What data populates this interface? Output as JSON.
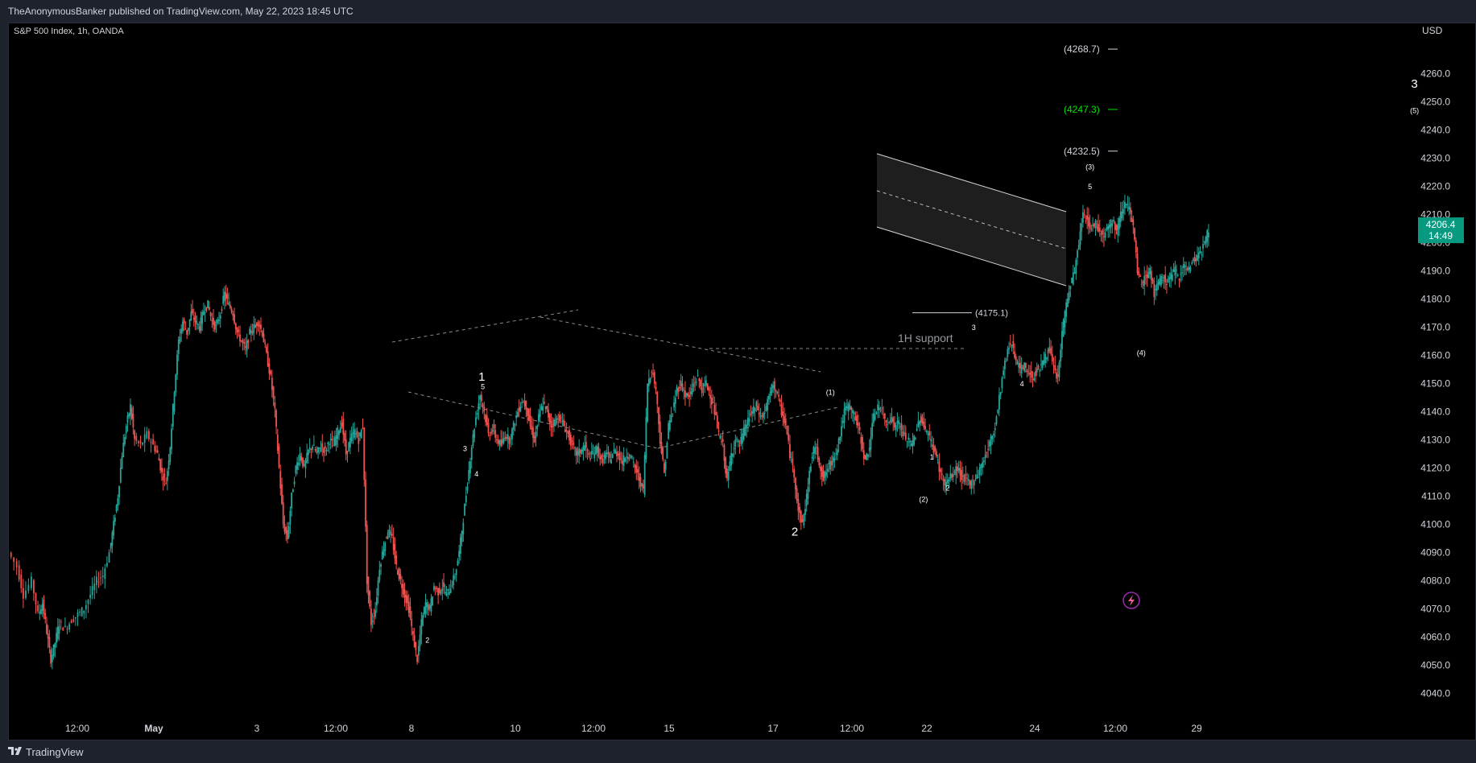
{
  "header": {
    "text": "TheAnonymousBanker published on TradingView.com, May 22, 2023 18:45 UTC"
  },
  "footer": {
    "brand": "TradingView"
  },
  "colors": {
    "up": "#26a69a",
    "down": "#ef5350",
    "background": "#000000",
    "frame": "#1e222d",
    "text": "#d1d4dc",
    "accent_green": "#00e600",
    "price_label_bg": "#089981"
  },
  "chart_data": {
    "type": "candlestick",
    "symbol_label": "S&P 500 Index, 1h, OANDA",
    "currency": "USD",
    "ylim": [
      4035,
      4275
    ],
    "y_ticks": [
      4040.0,
      4050.0,
      4060.0,
      4070.0,
      4080.0,
      4090.0,
      4100.0,
      4110.0,
      4120.0,
      4130.0,
      4140.0,
      4150.0,
      4160.0,
      4170.0,
      4180.0,
      4190.0,
      4200.0,
      4210.0,
      4220.0,
      4230.0,
      4240.0,
      4250.0,
      4260.0
    ],
    "x_ticks": [
      "12:00",
      "May",
      "3",
      "12:00",
      "8",
      "10",
      "12:00",
      "15",
      "17",
      "12:00",
      "22",
      "24",
      "12:00",
      "29"
    ],
    "last_price": {
      "value": "4206.4",
      "countdown": "14:49"
    },
    "price_path": [
      [
        0,
        4090
      ],
      [
        8,
        4085
      ],
      [
        14,
        4075
      ],
      [
        22,
        4080
      ],
      [
        28,
        4068
      ],
      [
        32,
        4072
      ],
      [
        36,
        4062
      ],
      [
        40,
        4052
      ],
      [
        44,
        4058
      ],
      [
        48,
        4065
      ],
      [
        54,
        4063
      ],
      [
        60,
        4066
      ],
      [
        66,
        4068
      ],
      [
        72,
        4070
      ],
      [
        78,
        4075
      ],
      [
        84,
        4080
      ],
      [
        90,
        4082
      ],
      [
        96,
        4090
      ],
      [
        100,
        4100
      ],
      [
        104,
        4110
      ],
      [
        108,
        4125
      ],
      [
        112,
        4135
      ],
      [
        116,
        4142
      ],
      [
        120,
        4130
      ],
      [
        126,
        4128
      ],
      [
        132,
        4132
      ],
      [
        138,
        4128
      ],
      [
        142,
        4125
      ],
      [
        146,
        4118
      ],
      [
        150,
        4115
      ],
      [
        154,
        4128
      ],
      [
        158,
        4148
      ],
      [
        162,
        4165
      ],
      [
        166,
        4172
      ],
      [
        170,
        4168
      ],
      [
        174,
        4175
      ],
      [
        178,
        4172
      ],
      [
        182,
        4170
      ],
      [
        186,
        4176
      ],
      [
        190,
        4178
      ],
      [
        194,
        4172
      ],
      [
        198,
        4170
      ],
      [
        202,
        4175
      ],
      [
        206,
        4182
      ],
      [
        210,
        4178
      ],
      [
        214,
        4175
      ],
      [
        218,
        4168
      ],
      [
        222,
        4165
      ],
      [
        226,
        4162
      ],
      [
        230,
        4168
      ],
      [
        234,
        4170
      ],
      [
        238,
        4172
      ],
      [
        242,
        4168
      ],
      [
        246,
        4160
      ],
      [
        250,
        4152
      ],
      [
        254,
        4140
      ],
      [
        258,
        4120
      ],
      [
        262,
        4100
      ],
      [
        266,
        4095
      ],
      [
        270,
        4110
      ],
      [
        274,
        4120
      ],
      [
        278,
        4125
      ],
      [
        282,
        4120
      ],
      [
        286,
        4126
      ],
      [
        290,
        4128
      ],
      [
        294,
        4125
      ],
      [
        298,
        4128
      ],
      [
        302,
        4126
      ],
      [
        306,
        4130
      ],
      [
        310,
        4128
      ],
      [
        314,
        4133
      ],
      [
        318,
        4136
      ],
      [
        322,
        4125
      ],
      [
        326,
        4130
      ],
      [
        330,
        4133
      ],
      [
        334,
        4130
      ],
      [
        338,
        4135
      ],
      [
        342,
        4080
      ],
      [
        346,
        4065
      ],
      [
        350,
        4070
      ],
      [
        354,
        4085
      ],
      [
        358,
        4092
      ],
      [
        362,
        4098
      ],
      [
        366,
        4095
      ],
      [
        370,
        4085
      ],
      [
        374,
        4080
      ],
      [
        378,
        4075
      ],
      [
        382,
        4070
      ],
      [
        386,
        4060
      ],
      [
        390,
        4052
      ],
      [
        394,
        4065
      ],
      [
        398,
        4072
      ],
      [
        402,
        4070
      ],
      [
        406,
        4078
      ],
      [
        410,
        4076
      ],
      [
        414,
        4078
      ],
      [
        418,
        4075
      ],
      [
        422,
        4078
      ],
      [
        426,
        4082
      ],
      [
        430,
        4090
      ],
      [
        434,
        4102
      ],
      [
        438,
        4115
      ],
      [
        442,
        4128
      ],
      [
        446,
        4138
      ],
      [
        450,
        4146
      ],
      [
        454,
        4140
      ],
      [
        458,
        4132
      ],
      [
        462,
        4134
      ],
      [
        466,
        4130
      ],
      [
        470,
        4128
      ],
      [
        474,
        4132
      ],
      [
        478,
        4130
      ],
      [
        482,
        4135
      ],
      [
        486,
        4140
      ],
      [
        490,
        4144
      ],
      [
        494,
        4142
      ],
      [
        498,
        4135
      ],
      [
        502,
        4130
      ],
      [
        506,
        4138
      ],
      [
        510,
        4143
      ],
      [
        514,
        4140
      ],
      [
        518,
        4135
      ],
      [
        522,
        4137
      ],
      [
        526,
        4138
      ],
      [
        530,
        4135
      ],
      [
        534,
        4132
      ],
      [
        538,
        4128
      ],
      [
        542,
        4125
      ],
      [
        546,
        4126
      ],
      [
        550,
        4128
      ],
      [
        554,
        4124
      ],
      [
        558,
        4125
      ],
      [
        562,
        4127
      ],
      [
        566,
        4122
      ],
      [
        570,
        4125
      ],
      [
        574,
        4123
      ],
      [
        578,
        4126
      ],
      [
        582,
        4125
      ],
      [
        586,
        4122
      ],
      [
        590,
        4125
      ],
      [
        594,
        4124
      ],
      [
        598,
        4120
      ],
      [
        602,
        4116
      ],
      [
        606,
        4112
      ],
      [
        610,
        4150
      ],
      [
        614,
        4155
      ],
      [
        618,
        4148
      ],
      [
        622,
        4130
      ],
      [
        626,
        4118
      ],
      [
        630,
        4135
      ],
      [
        634,
        4140
      ],
      [
        638,
        4148
      ],
      [
        642,
        4150
      ],
      [
        646,
        4146
      ],
      [
        650,
        4145
      ],
      [
        654,
        4150
      ],
      [
        658,
        4152
      ],
      [
        662,
        4148
      ],
      [
        666,
        4150
      ],
      [
        670,
        4146
      ],
      [
        674,
        4140
      ],
      [
        678,
        4132
      ],
      [
        682,
        4128
      ],
      [
        686,
        4115
      ],
      [
        690,
        4125
      ],
      [
        694,
        4130
      ],
      [
        698,
        4128
      ],
      [
        702,
        4133
      ],
      [
        706,
        4137
      ],
      [
        710,
        4140
      ],
      [
        714,
        4142
      ],
      [
        718,
        4138
      ],
      [
        722,
        4140
      ],
      [
        726,
        4145
      ],
      [
        730,
        4150
      ],
      [
        734,
        4146
      ],
      [
        738,
        4140
      ],
      [
        742,
        4135
      ],
      [
        746,
        4125
      ],
      [
        750,
        4118
      ],
      [
        754,
        4105
      ],
      [
        758,
        4100
      ],
      [
        762,
        4110
      ],
      [
        766,
        4122
      ],
      [
        770,
        4128
      ],
      [
        774,
        4122
      ],
      [
        778,
        4116
      ],
      [
        782,
        4120
      ],
      [
        786,
        4122
      ],
      [
        790,
        4126
      ],
      [
        794,
        4132
      ],
      [
        798,
        4140
      ],
      [
        802,
        4142
      ],
      [
        806,
        4140
      ],
      [
        810,
        4136
      ],
      [
        814,
        4130
      ],
      [
        818,
        4122
      ],
      [
        822,
        4128
      ],
      [
        826,
        4138
      ],
      [
        830,
        4142
      ],
      [
        834,
        4140
      ],
      [
        838,
        4136
      ],
      [
        842,
        4138
      ],
      [
        846,
        4135
      ],
      [
        850,
        4136
      ],
      [
        854,
        4132
      ],
      [
        858,
        4130
      ],
      [
        862,
        4128
      ],
      [
        866,
        4132
      ],
      [
        870,
        4138
      ],
      [
        874,
        4135
      ],
      [
        878,
        4132
      ],
      [
        882,
        4128
      ],
      [
        886,
        4124
      ],
      [
        890,
        4118
      ],
      [
        894,
        4114
      ],
      [
        898,
        4116
      ],
      [
        902,
        4118
      ],
      [
        906,
        4120
      ],
      [
        910,
        4117
      ],
      [
        914,
        4116
      ],
      [
        918,
        4114
      ],
      [
        922,
        4116
      ],
      [
        926,
        4118
      ],
      [
        930,
        4122
      ],
      [
        934,
        4126
      ],
      [
        938,
        4130
      ],
      [
        942,
        4135
      ],
      [
        946,
        4145
      ],
      [
        950,
        4155
      ],
      [
        954,
        4162
      ],
      [
        958,
        4165
      ],
      [
        962,
        4158
      ],
      [
        966,
        4155
      ],
      [
        970,
        4156
      ],
      [
        974,
        4154
      ],
      [
        978,
        4152
      ],
      [
        982,
        4155
      ],
      [
        986,
        4156
      ],
      [
        990,
        4160
      ],
      [
        994,
        4162
      ],
      [
        998,
        4155
      ],
      [
        1002,
        4152
      ],
      [
        1006,
        4168
      ],
      [
        1010,
        4178
      ],
      [
        1014,
        4185
      ],
      [
        1018,
        4190
      ],
      [
        1022,
        4200
      ],
      [
        1026,
        4210
      ],
      [
        1030,
        4208
      ],
      [
        1034,
        4205
      ],
      [
        1038,
        4207
      ],
      [
        1042,
        4204
      ],
      [
        1046,
        4203
      ],
      [
        1050,
        4206
      ],
      [
        1054,
        4208
      ],
      [
        1058,
        4204
      ],
      [
        1062,
        4210
      ],
      [
        1066,
        4215
      ],
      [
        1070,
        4212
      ],
      [
        1074,
        4205
      ],
      [
        1078,
        4190
      ],
      [
        1082,
        4185
      ],
      [
        1086,
        4188
      ],
      [
        1090,
        4190
      ],
      [
        1094,
        4182
      ],
      [
        1098,
        4185
      ],
      [
        1102,
        4188
      ],
      [
        1106,
        4186
      ],
      [
        1110,
        4188
      ],
      [
        1114,
        4190
      ],
      [
        1118,
        4188
      ],
      [
        1122,
        4192
      ],
      [
        1126,
        4190
      ],
      [
        1130,
        4193
      ],
      [
        1134,
        4195
      ],
      [
        1138,
        4196
      ],
      [
        1142,
        4200
      ],
      [
        1146,
        4205
      ]
    ],
    "wave_labels": [
      {
        "text": "1",
        "x": 451,
        "y": 4151,
        "size": "large"
      },
      {
        "text": "2",
        "x": 750,
        "y": 4096,
        "size": "large"
      },
      {
        "text": "3",
        "x": 1342,
        "y": 4255,
        "size": "large"
      },
      {
        "text": "5",
        "x": 452,
        "y": 4148,
        "size": "small"
      },
      {
        "text": "3",
        "x": 435,
        "y": 4126,
        "size": "small"
      },
      {
        "text": "4",
        "x": 446,
        "y": 4117,
        "size": "small"
      },
      {
        "text": "2",
        "x": 399,
        "y": 4058,
        "size": "small"
      },
      {
        "text": "(1)",
        "x": 784,
        "y": 4146,
        "size": "small"
      },
      {
        "text": "(2)",
        "x": 873,
        "y": 4108,
        "size": "small"
      },
      {
        "text": "1",
        "x": 881,
        "y": 4123,
        "size": "small"
      },
      {
        "text": "2",
        "x": 896,
        "y": 4112,
        "size": "small"
      },
      {
        "text": "3",
        "x": 921,
        "y": 4169,
        "size": "small"
      },
      {
        "text": "4",
        "x": 967,
        "y": 4149,
        "size": "small"
      },
      {
        "text": "(3)",
        "x": 1032,
        "y": 4226,
        "size": "small"
      },
      {
        "text": "5",
        "x": 1032,
        "y": 4219,
        "size": "small"
      },
      {
        "text": "(4)",
        "x": 1081,
        "y": 4160,
        "size": "small"
      },
      {
        "text": "(5)",
        "x": 1342,
        "y": 4246,
        "size": "small"
      }
    ],
    "annotations": [
      {
        "text": "1H support",
        "x": 1050,
        "y": 4145
      },
      {
        "text": "(4175.1)",
        "x": 1120,
        "y": 4175.1
      }
    ],
    "target_levels": [
      {
        "label": "(4268.7)",
        "value": 4268.7,
        "color": "#d1d4dc"
      },
      {
        "label": "(4247.3)",
        "value": 4247.3,
        "color": "#00e600"
      },
      {
        "label": "(4232.5)",
        "value": 4232.5,
        "color": "#d1d4dc"
      }
    ]
  }
}
